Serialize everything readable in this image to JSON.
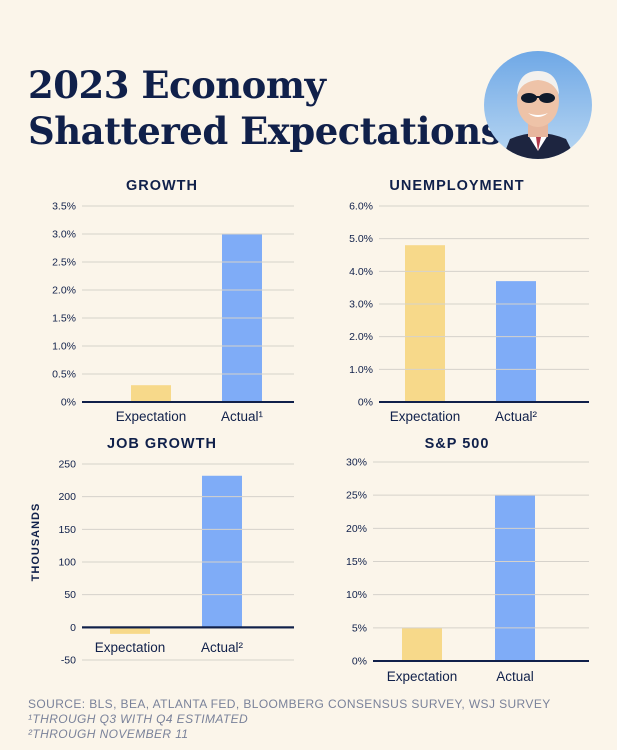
{
  "header": {
    "title_line1": "2023 Economy",
    "title_line2": "Shattered Expectations"
  },
  "colors": {
    "expectation": "#f7d98a",
    "actual": "#7facf7",
    "text": "#10204a",
    "grid": "#d6d2cb",
    "axis": "#10204a"
  },
  "chart_data": [
    {
      "type": "bar",
      "title": "GROWTH",
      "categories": [
        "Expectation",
        "Actual¹"
      ],
      "values": [
        0.3,
        3.0
      ],
      "ylim": [
        0,
        3.5
      ],
      "yticks": [
        0,
        0.5,
        1.0,
        1.5,
        2.0,
        2.5,
        3.0,
        3.5
      ],
      "ytick_labels": [
        "0%",
        "0.5%",
        "1.0%",
        "1.5%",
        "2.0%",
        "2.5%",
        "3.0%",
        "3.5%"
      ],
      "ylabel": ""
    },
    {
      "type": "bar",
      "title": "UNEMPLOYMENT",
      "categories": [
        "Expectation",
        "Actual²"
      ],
      "values": [
        4.8,
        3.7
      ],
      "ylim": [
        0,
        6.0
      ],
      "yticks": [
        0,
        1,
        2,
        3,
        4,
        5,
        6
      ],
      "ytick_labels": [
        "0%",
        "1.0%",
        "2.0%",
        "3.0%",
        "4.0%",
        "5.0%",
        "6.0%"
      ],
      "ylabel": ""
    },
    {
      "type": "bar",
      "title": "JOB GROWTH",
      "categories": [
        "Expectation",
        "Actual²"
      ],
      "values": [
        -10,
        232
      ],
      "ylim": [
        -50,
        250
      ],
      "yticks": [
        -50,
        0,
        50,
        100,
        150,
        200,
        250
      ],
      "ytick_labels": [
        "-50",
        "0",
        "50",
        "100",
        "150",
        "200",
        "250"
      ],
      "ylabel": "THOUSANDS"
    },
    {
      "type": "bar",
      "title": "S&P 500",
      "categories": [
        "Expectation",
        "Actual"
      ],
      "values": [
        5,
        25
      ],
      "ylim": [
        0,
        30
      ],
      "yticks": [
        0,
        5,
        10,
        15,
        20,
        25,
        30
      ],
      "ytick_labels": [
        "0%",
        "5%",
        "10%",
        "15%",
        "20%",
        "25%",
        "30%"
      ],
      "ylabel": ""
    }
  ],
  "footer": {
    "source": "SOURCE: BLS, BEA, ATLANTA FED, BLOOMBERG CONSENSUS SURVEY, WSJ SURVEY",
    "note1": "¹THROUGH Q3 WITH Q4 ESTIMATED",
    "note2": "²THROUGH NOVEMBER 11"
  }
}
